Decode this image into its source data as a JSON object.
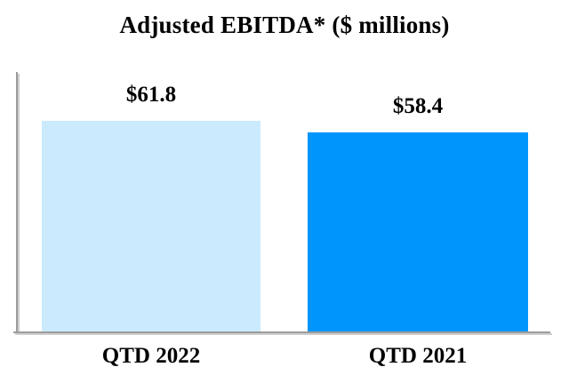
{
  "chart_data": {
    "type": "bar",
    "title": "Adjusted EBITDA* ($ millions)",
    "categories": [
      "QTD 2022",
      "QTD 2021"
    ],
    "values": [
      61.8,
      58.4
    ],
    "value_labels": [
      "$61.8",
      "$58.4"
    ],
    "series": [
      {
        "name": "Adjusted EBITDA",
        "values": [
          61.8,
          58.4
        ]
      }
    ],
    "bar_colors": [
      "#cbeafd",
      "#0095fb"
    ],
    "axis_color": "#9c9c9c",
    "axis_shadow_color": "#cfcfcf",
    "text_color": "#000000",
    "xlabel": "",
    "ylabel": "",
    "ylim": [
      0,
      65
    ],
    "gridlines": false,
    "legend": false,
    "data_labels_position": "above-bar"
  }
}
